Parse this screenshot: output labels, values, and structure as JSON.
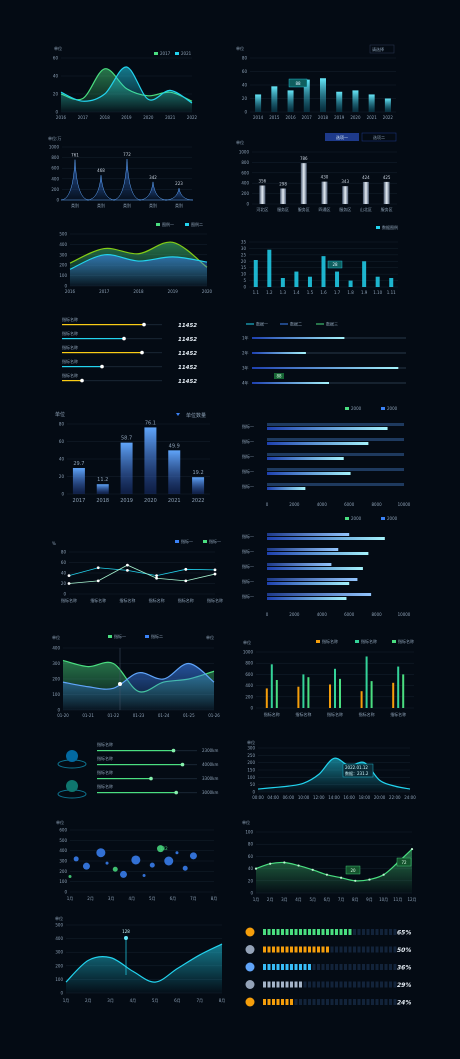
{
  "colors": {
    "bg": "#040b14",
    "cyan": "#22d3ee",
    "green": "#4ade80",
    "blue": "#3b82f6",
    "yellow": "#facc15",
    "orange": "#f59e0b",
    "grid": "#16222f",
    "text": "#8fa3b8"
  },
  "chart_data": [
    {
      "id": "c1",
      "type": "area",
      "title": "",
      "ylabel": "单位",
      "legend": [
        "2017",
        "2021"
      ],
      "x": [
        "2016",
        "2017",
        "2018",
        "2019",
        "2020",
        "2021",
        "2022"
      ],
      "ylim": [
        0,
        60
      ],
      "yticks": [
        "0",
        "20",
        "40",
        "60"
      ],
      "series": [
        {
          "name": "2017",
          "values": [
            20,
            15,
            48,
            26,
            18,
            22,
            12
          ]
        },
        {
          "name": "2021",
          "values": [
            22,
            12,
            20,
            50,
            14,
            24,
            10
          ]
        }
      ]
    },
    {
      "id": "c2",
      "type": "bar",
      "ylabel": "单位",
      "select": "请选择",
      "categories": [
        "2014",
        "2015",
        "2016",
        "2017",
        "2018",
        "2019",
        "2020",
        "2021",
        "2022"
      ],
      "ylim": [
        0,
        80
      ],
      "yticks": [
        "0",
        "20",
        "40",
        "60",
        "80"
      ],
      "values": [
        26,
        38,
        32,
        48,
        50,
        30,
        32,
        26,
        20
      ],
      "tooltip": "88"
    },
    {
      "id": "c3",
      "type": "area",
      "ylabel": "单位:万",
      "categories": [
        "类别",
        "类别",
        "类别",
        "类别",
        "类别"
      ],
      "ylim": [
        0,
        1000
      ],
      "yticks": [
        "0",
        "200",
        "400",
        "600",
        "800",
        "1000"
      ],
      "values": [
        761,
        468,
        772,
        342,
        223
      ],
      "labels": [
        "761",
        "468",
        "772",
        "342",
        "223"
      ]
    },
    {
      "id": "c4",
      "type": "bar",
      "ylabel": "单位",
      "tabs": [
        "选项一",
        "选项二"
      ],
      "categories": [
        "河北区",
        "服务区",
        "服务区",
        "四通区",
        "服务区",
        "山北区",
        "服务区"
      ],
      "ylim": [
        0,
        1000
      ],
      "yticks": [
        "0",
        "200",
        "400",
        "600",
        "800",
        "1000"
      ],
      "values": [
        356,
        298,
        786,
        430,
        343,
        424,
        425
      ],
      "labels": [
        "356",
        "298",
        "786",
        "430",
        "343",
        "424",
        "425"
      ]
    },
    {
      "id": "c5",
      "type": "area",
      "legend": [
        "图例一",
        "图例二"
      ],
      "x": [
        "2016",
        "2017",
        "2018",
        "2019",
        "2020"
      ],
      "ylim": [
        0,
        500
      ],
      "yticks": [
        "0",
        "100",
        "200",
        "300",
        "400",
        "500"
      ],
      "series": [
        {
          "name": "图例一",
          "values": [
            220,
            360,
            310,
            420,
            180
          ]
        },
        {
          "name": "图例二",
          "values": [
            160,
            300,
            240,
            280,
            230
          ]
        }
      ]
    },
    {
      "id": "c6",
      "type": "bar",
      "legend": [
        "数据图例"
      ],
      "categories": [
        "1.1",
        "1.2",
        "1.3",
        "1.4",
        "1.5",
        "1.6",
        "1.7",
        "1.8",
        "1.9",
        "1.10",
        "1.11"
      ],
      "ylim": [
        0,
        35
      ],
      "yticks": [
        "0",
        "5",
        "10",
        "15",
        "20",
        "25",
        "30",
        "35"
      ],
      "values": [
        21,
        29,
        7,
        12,
        8,
        24,
        12,
        5,
        20,
        8,
        7
      ],
      "tooltip": "28"
    },
    {
      "id": "c7",
      "type": "bar",
      "orientation": "horizontal",
      "rows": [
        {
          "label": "指标名称",
          "value": "11452",
          "fraction": 0.82
        },
        {
          "label": "指标名称",
          "value": "11452",
          "fraction": 0.62
        },
        {
          "label": "指标名称",
          "value": "11452",
          "fraction": 0.8
        },
        {
          "label": "指标名称",
          "value": "11452",
          "fraction": 0.4
        },
        {
          "label": "指标名称",
          "value": "11452",
          "fraction": 0.2
        }
      ]
    },
    {
      "id": "c8",
      "type": "bar",
      "orientation": "horizontal",
      "legend": [
        "数据一",
        "数据二",
        "数据三"
      ],
      "rows": [
        {
          "label": "1年",
          "fraction": 0.6
        },
        {
          "label": "2年",
          "fraction": 0.35
        },
        {
          "label": "3年",
          "fraction": 0.95
        },
        {
          "label": "4年",
          "fraction": 0.5
        }
      ],
      "tooltip": "88"
    },
    {
      "id": "c9",
      "type": "bar",
      "ylabel": "单位",
      "legend": [
        "单位数量"
      ],
      "categories": [
        "2017",
        "2018",
        "2019",
        "2020",
        "2021",
        "2022"
      ],
      "ylim": [
        0,
        80
      ],
      "yticks": [
        "0",
        "20",
        "40",
        "60",
        "80"
      ],
      "values": [
        29.7,
        11.2,
        58.7,
        76.1,
        49.9,
        19.2
      ],
      "labels": [
        "29.7",
        "11.2",
        "58.7",
        "76.1",
        "49.9",
        "19.2"
      ]
    },
    {
      "id": "c10",
      "type": "bar",
      "orientation": "horizontal",
      "legend": [
        "2000",
        "2000"
      ],
      "categories": [
        "指标一",
        "指标一",
        "指标一",
        "指标一",
        "指标一"
      ],
      "xlim": [
        0,
        10000
      ],
      "xticks": [
        "0",
        "2000",
        "4000",
        "6000",
        "8000",
        "10000"
      ],
      "series": [
        {
          "name": "2000",
          "values": [
            8800,
            7400,
            5600,
            6100,
            2800
          ]
        },
        {
          "name": "2000",
          "values": [
            10000,
            10000,
            10000,
            10000,
            10000
          ]
        }
      ]
    },
    {
      "id": "c11",
      "type": "line",
      "ylabel": "%",
      "legend": [
        "指标一",
        "指标一"
      ],
      "categories": [
        "指标名称",
        "指标名称",
        "指标名称",
        "指标名称",
        "指标名称",
        "指标名称"
      ],
      "ylim": [
        0,
        80
      ],
      "yticks": [
        "0",
        "20",
        "40",
        "60",
        "80"
      ],
      "series": [
        {
          "name": "指标一",
          "values": [
            35,
            50,
            45,
            35,
            47,
            46
          ]
        },
        {
          "name": "指标一",
          "values": [
            20,
            25,
            55,
            30,
            25,
            38
          ]
        }
      ]
    },
    {
      "id": "c12",
      "type": "bar",
      "orientation": "horizontal",
      "legend": [
        "2000",
        "2000"
      ],
      "categories": [
        "指标一",
        "指标一",
        "指标一",
        "指标一",
        "指标一"
      ],
      "xlim": [
        0,
        10000
      ],
      "xticks": [
        "0",
        "2000",
        "4000",
        "6000",
        "8000",
        "10000"
      ],
      "series": [
        {
          "name": "2000",
          "values": [
            8600,
            7400,
            7000,
            6000,
            5800
          ]
        },
        {
          "name": "2000",
          "values": [
            6000,
            5200,
            4700,
            6600,
            7600
          ]
        }
      ]
    },
    {
      "id": "c13",
      "type": "area",
      "ylabel": "单位",
      "ylabel2": "单位",
      "legend": [
        "指标一",
        "指标二"
      ],
      "x": [
        "01-20",
        "01-21",
        "01-22",
        "01-23",
        "01-24",
        "01-25",
        "01-26"
      ],
      "ylim": [
        0,
        400
      ],
      "yticks": [
        "0",
        "100",
        "200",
        "300",
        "400"
      ],
      "series": [
        {
          "name": "指标一",
          "values": [
            320,
            280,
            300,
            120,
            180,
            200,
            250
          ]
        },
        {
          "name": "指标二",
          "values": [
            180,
            150,
            140,
            240,
            200,
            300,
            180
          ]
        }
      ]
    },
    {
      "id": "c14",
      "type": "bar",
      "ylabel": "单位",
      "legend": [
        "指标名称",
        "指标名称",
        "指标名称"
      ],
      "categories": [
        "指标名称",
        "指标名称",
        "指标名称",
        "指标名称",
        "指标名称"
      ],
      "ylim": [
        0,
        1000
      ],
      "yticks": [
        "0",
        "200",
        "400",
        "600",
        "800",
        "1000"
      ],
      "series": [
        {
          "name": "指标名称",
          "values": [
            350,
            380,
            420,
            300,
            450
          ]
        },
        {
          "name": "指标名称",
          "values": [
            780,
            600,
            700,
            920,
            740
          ]
        },
        {
          "name": "指标名称",
          "values": [
            500,
            550,
            520,
            480,
            600
          ]
        }
      ]
    },
    {
      "id": "c15",
      "type": "bar",
      "orientation": "horizontal",
      "rows": [
        {
          "label": "指标名称",
          "value": "2300km",
          "fraction": 0.85
        },
        {
          "label": "指标名称",
          "value": "4000km",
          "fraction": 0.95
        },
        {
          "label": "指标名称",
          "value": "3300km",
          "fraction": 0.6
        },
        {
          "label": "指标名称",
          "value": "3000km",
          "fraction": 0.88
        }
      ]
    },
    {
      "id": "c16",
      "type": "area",
      "ylabel": "单位",
      "x": [
        "00:00",
        "04:00",
        "06:00",
        "10:00",
        "12:00",
        "14:00",
        "16:00",
        "18:00",
        "20:00",
        "22:00",
        "24:00"
      ],
      "ylim": [
        0,
        300
      ],
      "yticks": [
        "0",
        "50",
        "100",
        "150",
        "200",
        "250",
        "300"
      ],
      "values": [
        20,
        30,
        40,
        60,
        120,
        230,
        180,
        200,
        80,
        40,
        20
      ],
      "tooltip": [
        "2022.01.12",
        "数据：231.2"
      ]
    },
    {
      "id": "c17",
      "type": "scatter",
      "ylabel": "单位",
      "categories": [
        "1月",
        "2月",
        "3月",
        "4月",
        "5月",
        "6月",
        "7月",
        "8月"
      ],
      "ylim": [
        0,
        600
      ],
      "yticks": [
        "0",
        "100",
        "200",
        "300",
        "400",
        "500",
        "600"
      ],
      "points": [
        [
          1,
          150
        ],
        [
          1.3,
          320
        ],
        [
          1.8,
          250
        ],
        [
          2.5,
          380
        ],
        [
          2.8,
          280
        ],
        [
          3.2,
          220
        ],
        [
          3.6,
          170
        ],
        [
          4.2,
          310
        ],
        [
          4.6,
          160
        ],
        [
          5,
          260
        ],
        [
          5.4,
          420
        ],
        [
          5.8,
          300
        ],
        [
          6.2,
          380
        ],
        [
          6.6,
          230
        ],
        [
          7,
          350
        ]
      ],
      "tooltip": "132"
    },
    {
      "id": "c18",
      "type": "line",
      "ylabel": "单位",
      "categories": [
        "1月",
        "2月",
        "3月",
        "4月",
        "5月",
        "6月",
        "7月",
        "8月",
        "9月",
        "10月",
        "11月",
        "12月"
      ],
      "ylim": [
        0,
        100
      ],
      "yticks": [
        "0",
        "20",
        "40",
        "60",
        "80",
        "100"
      ],
      "values": [
        40,
        48,
        50,
        45,
        38,
        30,
        25,
        20,
        22,
        30,
        50,
        72
      ],
      "labels": [
        "20",
        "72"
      ]
    },
    {
      "id": "c19",
      "type": "area",
      "ylabel": "单位",
      "categories": [
        "1月",
        "2月",
        "3月",
        "4月",
        "5月",
        "6月",
        "7月",
        "8月"
      ],
      "ylim": [
        0,
        500
      ],
      "yticks": [
        "0",
        "100",
        "200",
        "300",
        "400",
        "500"
      ],
      "values": [
        80,
        240,
        260,
        160,
        80,
        180,
        280,
        360
      ],
      "tooltip": "128"
    },
    {
      "id": "c20",
      "type": "bar",
      "orientation": "horizontal",
      "rows": [
        {
          "value": "65%",
          "fraction": 0.65,
          "color": "#4ade80"
        },
        {
          "value": "50%",
          "fraction": 0.5,
          "color": "#f59e0b"
        },
        {
          "value": "36%",
          "fraction": 0.36,
          "color": "#38bdf8"
        },
        {
          "value": "29%",
          "fraction": 0.29,
          "color": "#a5b4c8"
        },
        {
          "value": "24%",
          "fraction": 0.24,
          "color": "#f59e0b"
        }
      ]
    }
  ]
}
